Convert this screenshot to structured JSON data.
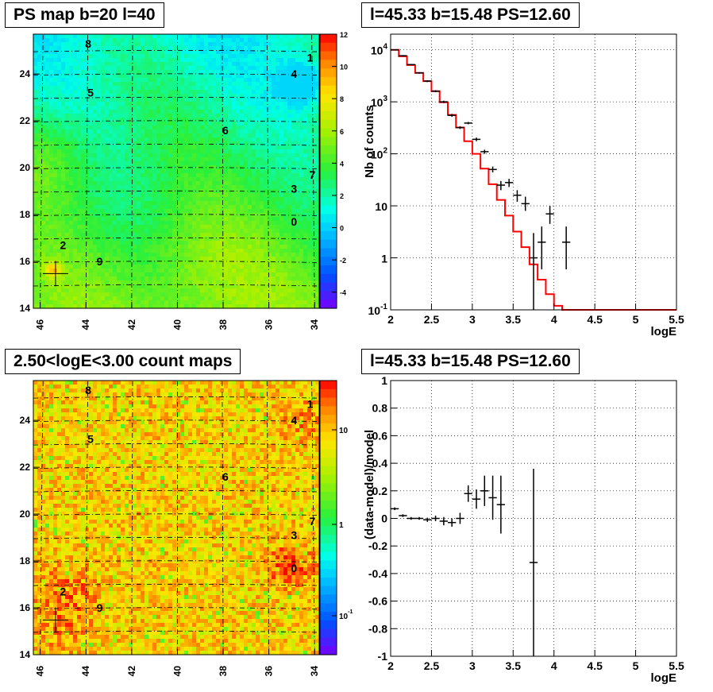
{
  "titles": {
    "map_top": "PS map b=20 l=40",
    "spectrum_top": "l=45.33 b=15.48 PS=12.60",
    "map_bottom": "2.50<logE<3.00 count maps",
    "residual_bottom": "l=45.33 b=15.48 PS=12.60"
  },
  "colors": {
    "model_line": "#ff0000",
    "data_points": "#000000",
    "grid": "#000000"
  },
  "chart_data": [
    {
      "type": "heatmap",
      "title": "PS map b=20 l=40",
      "x_ticks": [
        "46",
        "44",
        "42",
        "40",
        "38",
        "36",
        "34"
      ],
      "y_ticks": [
        "14",
        "16",
        "18",
        "20",
        "22",
        "24"
      ],
      "xlim": [
        46.3,
        33.8
      ],
      "ylim": [
        14,
        25.7
      ],
      "colorbar_ticks": [
        "12",
        "10",
        "8",
        "6",
        "4",
        "2",
        "0",
        "-2",
        "-4"
      ],
      "colorbar_range": [
        -5,
        12
      ],
      "sources": [
        {
          "label": "8",
          "l": 43.9,
          "b": 25.3
        },
        {
          "label": "4",
          "l": 34.9,
          "b": 24.0
        },
        {
          "label": "1",
          "l": 34.2,
          "b": 24.7
        },
        {
          "label": "5",
          "l": 43.8,
          "b": 23.2
        },
        {
          "label": "6",
          "l": 37.9,
          "b": 21.6
        },
        {
          "label": "7",
          "l": 34.1,
          "b": 19.7
        },
        {
          "label": "3",
          "l": 34.9,
          "b": 19.1
        },
        {
          "label": "0",
          "l": 34.9,
          "b": 17.7
        },
        {
          "label": "2",
          "l": 45.0,
          "b": 16.7
        },
        {
          "label": "9",
          "l": 43.4,
          "b": 16.0
        }
      ],
      "marker": {
        "l": 45.33,
        "b": 15.48
      }
    },
    {
      "type": "line",
      "title": "l=45.33 b=15.48 PS=12.60",
      "xlabel": "logE",
      "ylabel": "Nb of counts",
      "y_scale": "log",
      "xlim": [
        2,
        5.5
      ],
      "ylim": [
        0.1,
        20000
      ],
      "grid": true,
      "x_ticks": [
        "2",
        "2.5",
        "3",
        "3.5",
        "4",
        "4.5",
        "5",
        "5.5"
      ],
      "y_ticks": [
        {
          "base": "10",
          "exp": "4"
        },
        {
          "base": "10",
          "exp": "3"
        },
        {
          "base": "10",
          "exp": "2"
        },
        {
          "base": "10",
          "exp": ""
        },
        {
          "base": "1",
          "exp": ""
        },
        {
          "base": "10",
          "exp": "-1"
        }
      ],
      "model": {
        "bins": [
          2.0,
          2.1,
          2.2,
          2.3,
          2.4,
          2.5,
          2.6,
          2.7,
          2.8,
          2.9,
          3.0,
          3.1,
          3.2,
          3.3,
          3.4,
          3.5,
          3.6,
          3.7,
          3.8,
          3.9,
          4.0,
          4.1,
          4.2,
          4.3,
          4.4,
          4.5,
          4.6,
          4.7,
          4.8,
          4.9,
          5.0,
          5.1,
          5.2,
          5.3,
          5.4,
          5.5
        ],
        "values": [
          10000,
          7500,
          5100,
          3600,
          2500,
          1600,
          980,
          560,
          320,
          175,
          100,
          52,
          26,
          13,
          6.5,
          3.2,
          1.6,
          0.75,
          0.38,
          0.2,
          0.12,
          0.1,
          0.1,
          0.1,
          0.1,
          0.1,
          0.1,
          0.1,
          0.1,
          0.1,
          0.1,
          0.1,
          0.1,
          0.1,
          0.1
        ]
      },
      "data": [
        {
          "x": 2.05,
          "y": 10000,
          "ylo": 9800,
          "yhi": 10200
        },
        {
          "x": 2.15,
          "y": 7700,
          "ylo": 7500,
          "yhi": 7900
        },
        {
          "x": 2.25,
          "y": 5200,
          "ylo": 5050,
          "yhi": 5350
        },
        {
          "x": 2.35,
          "y": 3600,
          "ylo": 3480,
          "yhi": 3720
        },
        {
          "x": 2.45,
          "y": 2500,
          "ylo": 2400,
          "yhi": 2600
        },
        {
          "x": 2.55,
          "y": 1600,
          "ylo": 1530,
          "yhi": 1670
        },
        {
          "x": 2.65,
          "y": 1000,
          "ylo": 950,
          "yhi": 1050
        },
        {
          "x": 2.75,
          "y": 550,
          "ylo": 515,
          "yhi": 585
        },
        {
          "x": 2.85,
          "y": 320,
          "ylo": 300,
          "yhi": 340
        },
        {
          "x": 2.95,
          "y": 390,
          "ylo": 370,
          "yhi": 410
        },
        {
          "x": 3.05,
          "y": 190,
          "ylo": 175,
          "yhi": 205
        },
        {
          "x": 3.15,
          "y": 110,
          "ylo": 100,
          "yhi": 120
        },
        {
          "x": 3.25,
          "y": 50,
          "ylo": 44,
          "yhi": 57
        },
        {
          "x": 3.35,
          "y": 25,
          "ylo": 20,
          "yhi": 30
        },
        {
          "x": 3.45,
          "y": 28,
          "ylo": 23,
          "yhi": 33
        },
        {
          "x": 3.55,
          "y": 16,
          "ylo": 12,
          "yhi": 20
        },
        {
          "x": 3.65,
          "y": 11,
          "ylo": 8,
          "yhi": 15
        },
        {
          "x": 3.75,
          "y": 1,
          "ylo": 0.1,
          "yhi": 3
        },
        {
          "x": 3.85,
          "y": 2,
          "ylo": 0.6,
          "yhi": 4
        },
        {
          "x": 3.95,
          "y": 7,
          "ylo": 4.5,
          "yhi": 10
        },
        {
          "x": 4.15,
          "y": 2,
          "ylo": 0.6,
          "yhi": 4
        }
      ]
    },
    {
      "type": "heatmap",
      "title": "2.50<logE<3.00 count maps",
      "x_ticks": [
        "46",
        "44",
        "42",
        "40",
        "38",
        "36",
        "34"
      ],
      "y_ticks": [
        "14",
        "16",
        "18",
        "20",
        "22",
        "24"
      ],
      "xlim": [
        46.3,
        33.8
      ],
      "ylim": [
        14,
        25.7
      ],
      "colorbar_scale": "log",
      "colorbar_ticks": [
        {
          "base": "10",
          "exp": ""
        },
        {
          "base": "1",
          "exp": ""
        },
        {
          "base": "10",
          "exp": "-1"
        }
      ],
      "sources": [
        {
          "label": "8",
          "l": 43.9,
          "b": 25.3
        },
        {
          "label": "4",
          "l": 34.9,
          "b": 24.0
        },
        {
          "label": "1",
          "l": 34.2,
          "b": 24.7
        },
        {
          "label": "5",
          "l": 43.8,
          "b": 23.2
        },
        {
          "label": "6",
          "l": 37.9,
          "b": 21.6
        },
        {
          "label": "7",
          "l": 34.1,
          "b": 19.7
        },
        {
          "label": "3",
          "l": 34.9,
          "b": 19.1
        },
        {
          "label": "0",
          "l": 34.9,
          "b": 17.7
        },
        {
          "label": "2",
          "l": 45.0,
          "b": 16.7
        },
        {
          "label": "9",
          "l": 43.4,
          "b": 16.0
        }
      ],
      "marker": {
        "l": 45.33,
        "b": 15.48
      }
    },
    {
      "type": "scatter",
      "title": "l=45.33 b=15.48 PS=12.60",
      "xlabel": "logE",
      "ylabel": "(data-model)/model",
      "xlim": [
        2,
        5.5
      ],
      "ylim": [
        -1,
        1
      ],
      "grid": true,
      "x_ticks": [
        "2",
        "2.5",
        "3",
        "3.5",
        "4",
        "4.5",
        "5",
        "5.5"
      ],
      "y_ticks": [
        "1",
        "0.8",
        "0.6",
        "0.4",
        "0.2",
        "0",
        "-0.2",
        "-0.4",
        "-0.6",
        "-0.8",
        "-1"
      ],
      "data": [
        {
          "x": 2.05,
          "y": 0.07,
          "err": 0.01
        },
        {
          "x": 2.15,
          "y": 0.02,
          "err": 0.01
        },
        {
          "x": 2.25,
          "y": 0.0,
          "err": 0.01
        },
        {
          "x": 2.35,
          "y": 0.0,
          "err": 0.01
        },
        {
          "x": 2.45,
          "y": -0.01,
          "err": 0.015
        },
        {
          "x": 2.55,
          "y": 0.0,
          "err": 0.02
        },
        {
          "x": 2.65,
          "y": -0.02,
          "err": 0.03
        },
        {
          "x": 2.75,
          "y": -0.03,
          "err": 0.03
        },
        {
          "x": 2.85,
          "y": 0.0,
          "err": 0.04
        },
        {
          "x": 2.95,
          "y": 0.18,
          "err": 0.06
        },
        {
          "x": 3.05,
          "y": 0.14,
          "err": 0.07
        },
        {
          "x": 3.15,
          "y": 0.2,
          "err": 0.11
        },
        {
          "x": 3.25,
          "y": 0.15,
          "err": 0.16
        },
        {
          "x": 3.35,
          "y": 0.1,
          "err": 0.21
        },
        {
          "x": 3.75,
          "y": -0.32,
          "err": 0.68
        }
      ]
    }
  ]
}
